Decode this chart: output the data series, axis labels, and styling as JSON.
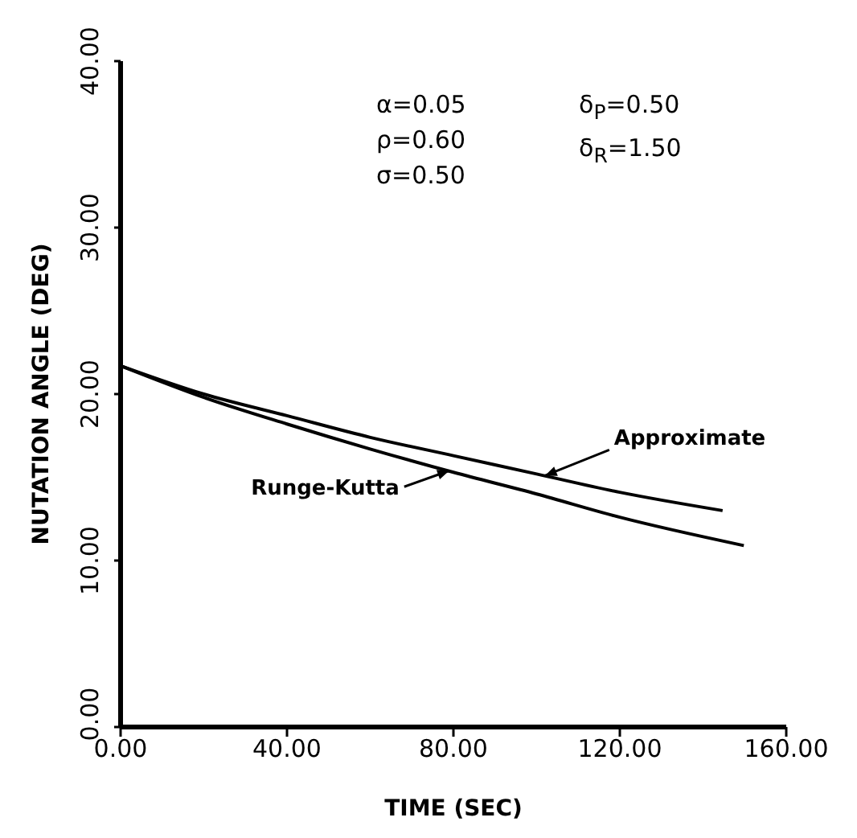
{
  "chart_data": {
    "type": "line",
    "xlabel": "TIME (SEC)",
    "ylabel": "NUTATION ANGLE (DEG)",
    "xlim": [
      0,
      160
    ],
    "ylim": [
      0,
      40
    ],
    "xticks": [
      {
        "value": 0,
        "label": "0.00"
      },
      {
        "value": 40,
        "label": "40.00"
      },
      {
        "value": 80,
        "label": "80.00"
      },
      {
        "value": 120,
        "label": "120.00"
      },
      {
        "value": 160,
        "label": "160.00"
      }
    ],
    "yticks": [
      {
        "value": 0,
        "label": "0.00"
      },
      {
        "value": 10,
        "label": "10.00"
      },
      {
        "value": 20,
        "label": "20.00"
      },
      {
        "value": 30,
        "label": "30.00"
      },
      {
        "value": 40,
        "label": "40.00"
      }
    ],
    "grid": false,
    "marker": "none",
    "line_style": "solid",
    "series": [
      {
        "color": "#000000",
        "x": [
          0,
          20,
          40,
          60,
          80,
          100,
          120,
          144.7
        ],
        "values": [
          21.7,
          20.0,
          18.7,
          17.4,
          16.3,
          15.2,
          14.1,
          13.0
        ]
      },
      {
        "color": "#000000",
        "x": [
          0,
          20,
          40,
          60,
          80,
          100,
          120,
          149.8
        ],
        "values": [
          21.7,
          19.8,
          18.2,
          16.7,
          15.3,
          14.0,
          12.6,
          10.9
        ]
      }
    ],
    "annotations": [
      "α=0.05",
      "ρ=0.60",
      "σ=0.50",
      "δ$_{P}$=0.50",
      "δ$_{R}$=1.50",
      {
        "text": "Approximate",
        "x": 102,
        "y": 15.1
      },
      {
        "text": "Runge-Kutta",
        "x": 79,
        "y": 15.4
      }
    ]
  }
}
